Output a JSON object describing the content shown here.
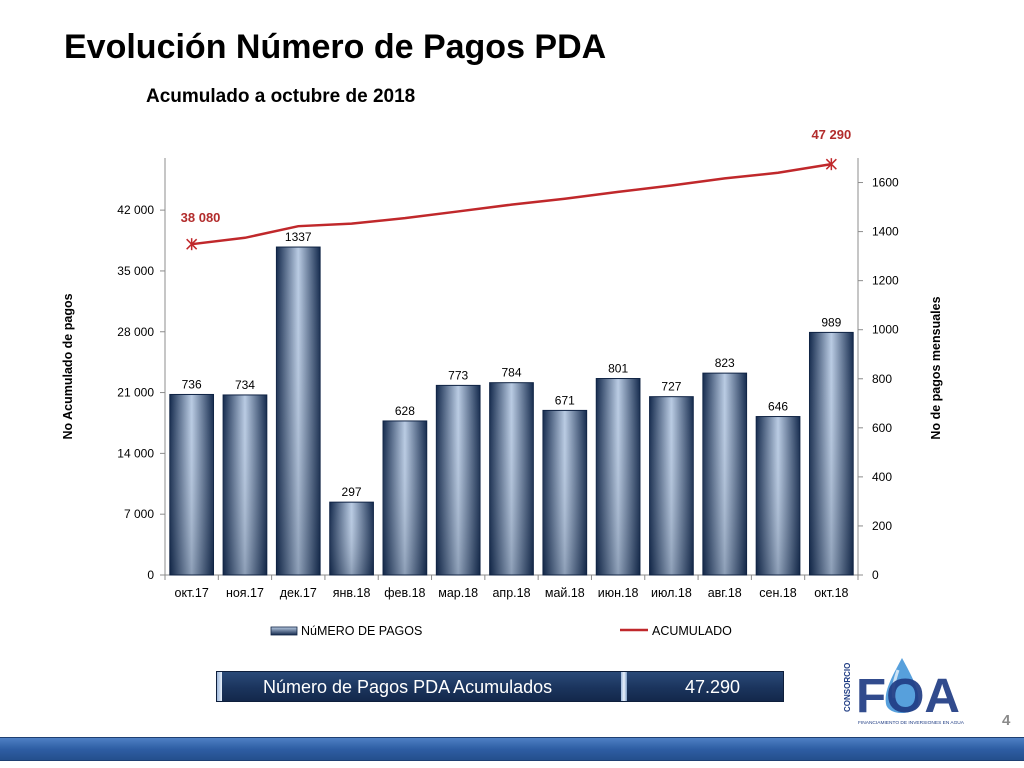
{
  "page": {
    "title": "Evolución Número de Pagos PDA",
    "subtitle": "Acumulado a octubre de 2018",
    "page_number": "4"
  },
  "summary": {
    "label": "Número de Pagos PDA Acumulados",
    "value": "47.290"
  },
  "logo": {
    "text": "FOA",
    "side_text": "CONSORCIO",
    "tagline": "FINANCIAMIENTO DE INVERSIONES EN AGUA"
  },
  "colors": {
    "bar_dark": "#142a4d",
    "bar_light": "#b9cbe3",
    "line": "#c0282b",
    "label_red": "#b22c2c",
    "footer": "#2e5ea4",
    "logo_blue": "#1f3c83"
  },
  "chart_data": {
    "type": "bar+line",
    "categories": [
      "окт.17",
      "ноя.17",
      "дек.17",
      "янв.18",
      "фев.18",
      "мар.18",
      "апр.18",
      "май.18",
      "июн.18",
      "июл.18",
      "авг.18",
      "сен.18",
      "окт.18"
    ],
    "series": [
      {
        "name": "NúMERO DE PAGOS",
        "type": "bar",
        "axis": "right",
        "values": [
          736,
          734,
          1337,
          297,
          628,
          773,
          784,
          671,
          801,
          727,
          823,
          646,
          989
        ],
        "labels": [
          "736",
          "734",
          "1337",
          "297",
          "628",
          "773",
          "784",
          "671",
          "801",
          "727",
          "823",
          "646",
          "989"
        ]
      },
      {
        "name": "ACUMULADO",
        "type": "line",
        "axis": "left",
        "values": [
          38080,
          38814,
          40151,
          40448,
          41076,
          41849,
          42633,
          43304,
          44105,
          44832,
          45655,
          46301,
          47290
        ],
        "point_labels": [
          {
            "index": 0,
            "text": "38 080"
          },
          {
            "index": 12,
            "text": "47 290"
          }
        ]
      }
    ],
    "left_axis": {
      "label": "No Acumulado de pagos",
      "ticks": [
        0,
        7000,
        14000,
        21000,
        28000,
        35000,
        42000
      ],
      "tick_labels": [
        "0",
        "7 000",
        "14 000",
        "21 000",
        "28 000",
        "35 000",
        "42 000"
      ],
      "range": [
        0,
        48000
      ]
    },
    "right_axis": {
      "label": "No de pagos mensuales",
      "ticks": [
        0,
        200,
        400,
        600,
        800,
        1000,
        1200,
        1400,
        1600
      ],
      "tick_labels": [
        "0",
        "200",
        "400",
        "600",
        "800",
        "1000",
        "1200",
        "1400",
        "1600"
      ],
      "range": [
        0,
        1700
      ]
    },
    "legend": {
      "placement": "bottom",
      "items": [
        "NúMERO DE PAGOS",
        "ACUMULADO"
      ]
    },
    "grid": false
  }
}
